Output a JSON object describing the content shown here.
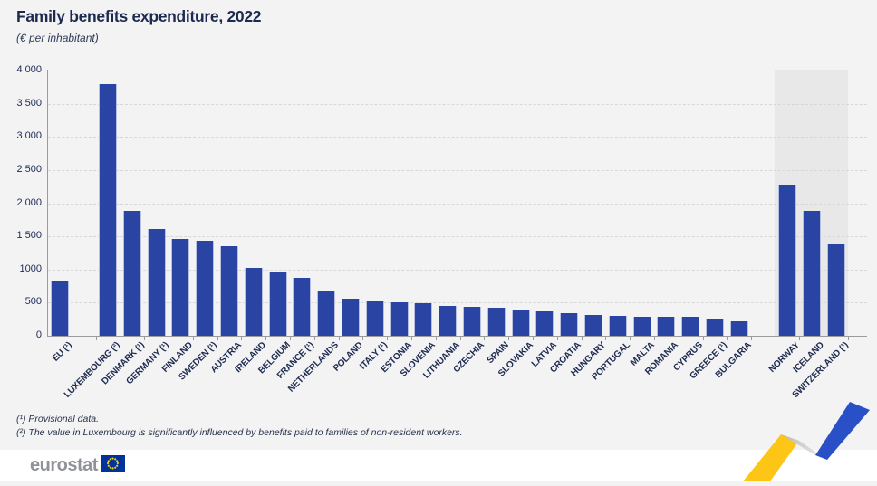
{
  "title": "Family benefits expenditure, 2022",
  "subtitle": "(€ per inhabitant)",
  "footnotes": [
    "(¹) Provisional data.",
    "(²) The value in Luxembourg is significantly influenced by benefits paid to families of non-resident workers."
  ],
  "logo": {
    "text": "eurostat"
  },
  "colors": {
    "bar_blue": "#2a44a4",
    "text_navy": "#1d2a50",
    "background": "#f3f3f4",
    "efta_band": "#e8e8e9",
    "gridline": "#d7d7d9",
    "flag_blue": "#003399",
    "star_yellow": "#ffcc00",
    "logo_gray": "#8f9298",
    "ribbon_yellow": "#fdc617",
    "ribbon_blue": "#2a50c8"
  },
  "chart_data": {
    "type": "bar",
    "title": "Family benefits expenditure, 2022",
    "subtitle": "(€ per inhabitant)",
    "ylabel": "€ per inhabitant",
    "xlabel": "",
    "ylim": [
      0,
      4000
    ],
    "ytick_interval": 500,
    "grid": "horizontal-dashed",
    "legend": "none",
    "highlight_band_over": [
      "NORWAY",
      "ICELAND",
      "SWITZERLAND (¹)"
    ],
    "yticks": [
      {
        "label": "4 000",
        "value": 4000
      },
      {
        "label": "3 500",
        "value": 3500
      },
      {
        "label": "3 000",
        "value": 3000
      },
      {
        "label": "2 500",
        "value": 2500
      },
      {
        "label": "2 000",
        "value": 2000
      },
      {
        "label": "1 500",
        "value": 1500
      },
      {
        "label": "1000",
        "value": 1000
      },
      {
        "label": "500",
        "value": 500
      },
      {
        "label": "0",
        "value": 0
      }
    ],
    "bars": [
      {
        "label": "EU (¹)",
        "value": 830,
        "group": "eu"
      },
      {
        "label": "LUXEMBOURG (²)",
        "value": 3790,
        "group": "member"
      },
      {
        "label": "DENMARK (¹)",
        "value": 1880,
        "group": "member"
      },
      {
        "label": "GERMANY (¹)",
        "value": 1615,
        "group": "member"
      },
      {
        "label": "FINLAND",
        "value": 1455,
        "group": "member"
      },
      {
        "label": "SWEDEN (¹)",
        "value": 1435,
        "group": "member"
      },
      {
        "label": "AUSTRIA",
        "value": 1350,
        "group": "member"
      },
      {
        "label": "IRELAND",
        "value": 1025,
        "group": "member"
      },
      {
        "label": "BELGIUM",
        "value": 975,
        "group": "member"
      },
      {
        "label": "FRANCE (¹)",
        "value": 875,
        "group": "member"
      },
      {
        "label": "NETHERLANDS",
        "value": 670,
        "group": "member"
      },
      {
        "label": "POLAND",
        "value": 555,
        "group": "member"
      },
      {
        "label": "ITALY (¹)",
        "value": 520,
        "group": "member"
      },
      {
        "label": "ESTONIA",
        "value": 505,
        "group": "member"
      },
      {
        "label": "SLOVENIA",
        "value": 490,
        "group": "member"
      },
      {
        "label": "LITHUANIA",
        "value": 455,
        "group": "member"
      },
      {
        "label": "CZECHIA",
        "value": 440,
        "group": "member"
      },
      {
        "label": "SPAIN",
        "value": 425,
        "group": "member"
      },
      {
        "label": "SLOVAKIA",
        "value": 395,
        "group": "member"
      },
      {
        "label": "LATVIA",
        "value": 370,
        "group": "member"
      },
      {
        "label": "CROATIA",
        "value": 340,
        "group": "member"
      },
      {
        "label": "HUNGARY",
        "value": 310,
        "group": "member"
      },
      {
        "label": "PORTUGAL",
        "value": 300,
        "group": "member"
      },
      {
        "label": "MALTA",
        "value": 292,
        "group": "member"
      },
      {
        "label": "ROMANIA",
        "value": 287,
        "group": "member"
      },
      {
        "label": "CYPRUS",
        "value": 280,
        "group": "member"
      },
      {
        "label": "GREECE (¹)",
        "value": 263,
        "group": "member"
      },
      {
        "label": "BULGARIA",
        "value": 218,
        "group": "member"
      },
      {
        "label": "NORWAY",
        "value": 2280,
        "group": "efta"
      },
      {
        "label": "ICELAND",
        "value": 1880,
        "group": "efta"
      },
      {
        "label": "SWITZERLAND (¹)",
        "value": 1375,
        "group": "efta"
      }
    ]
  }
}
